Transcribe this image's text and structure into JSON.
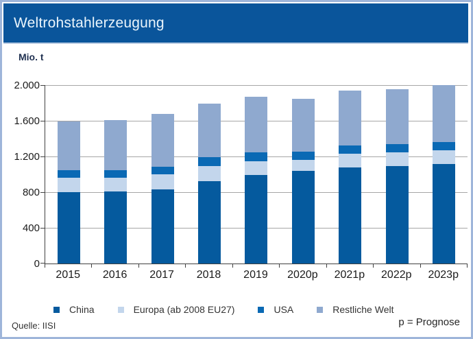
{
  "header": {
    "title": "Weltrohstahlerzeugung",
    "banner_bg": "#0A559B",
    "banner_text_color": "#EAF5FC"
  },
  "footer": {
    "source": "Quelle: IISI",
    "note": "p = Prognose"
  },
  "chart_data": {
    "type": "bar",
    "stacked": true,
    "title": "Weltrohstahlerzeugung",
    "ylabel": "Mio. t",
    "xlabel": "",
    "ylim": [
      0,
      2000
    ],
    "grid": true,
    "legend_position": "bottom",
    "categories": [
      "2015",
      "2016",
      "2017",
      "2018",
      "2019",
      "2020p",
      "2021p",
      "2022p",
      "2023p"
    ],
    "series": [
      {
        "name": "China",
        "color": "#055A9E",
        "values": [
          800,
          805,
          830,
          925,
          995,
          1035,
          1080,
          1090,
          1115
        ]
      },
      {
        "name": "Europa (ab 2008 EU27)",
        "color": "#C3D6EC",
        "values": [
          165,
          160,
          170,
          165,
          155,
          130,
          148,
          153,
          153
        ]
      },
      {
        "name": "USA",
        "color": "#0A69B4",
        "values": [
          80,
          85,
          85,
          100,
          95,
          90,
          97,
          97,
          95
        ]
      },
      {
        "name": "Restliche Welt",
        "color": "#8FA9CF",
        "values": [
          550,
          555,
          595,
          600,
          625,
          590,
          610,
          615,
          640
        ]
      }
    ],
    "yticks": [
      {
        "value": 0,
        "label": "0"
      },
      {
        "value": 400,
        "label": "400"
      },
      {
        "value": 800,
        "label": "800"
      },
      {
        "value": 1200,
        "label": "1.200"
      },
      {
        "value": 1600,
        "label": "1.600"
      },
      {
        "value": 2000,
        "label": "2.000"
      }
    ],
    "gridline_values": [
      400,
      800,
      1200,
      1600,
      2000
    ],
    "colors": {
      "gridline": "#a6a6a6",
      "axis": "#404040",
      "frame_border": "#9EB5DA"
    }
  }
}
